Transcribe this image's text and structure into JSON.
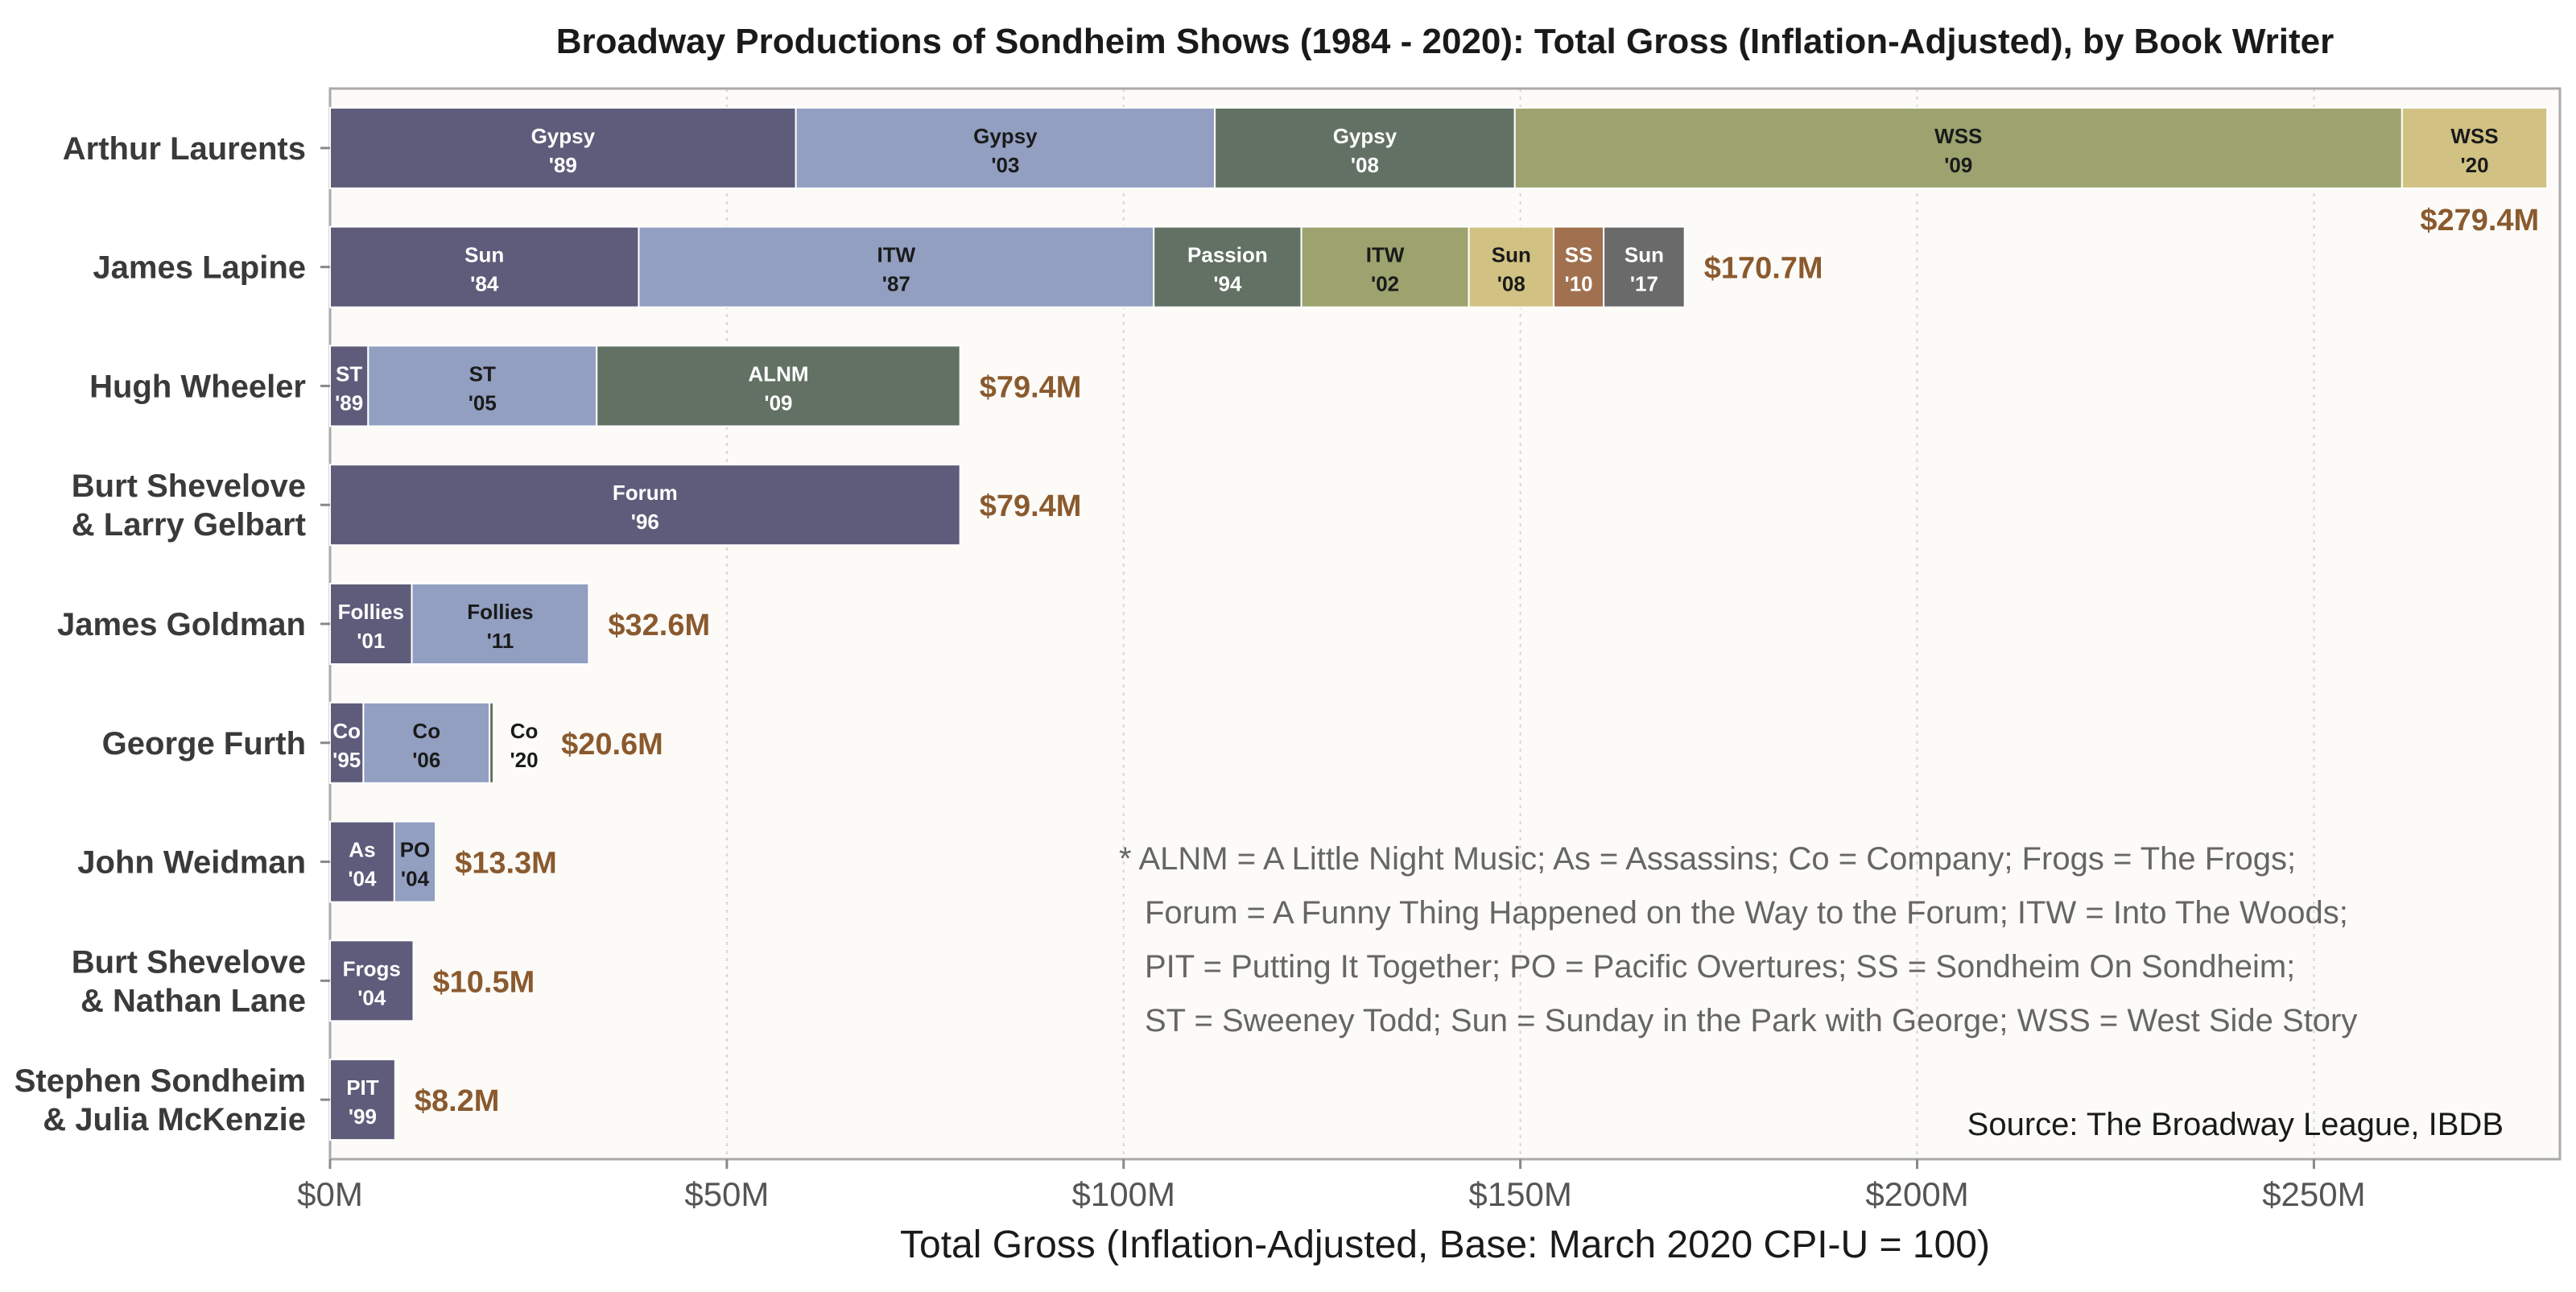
{
  "chart_data": {
    "type": "bar",
    "orientation": "horizontal",
    "stacked": true,
    "title": "Broadway Productions of Sondheim Shows (1984 - 2020): Total Gross (Inflation-Adjusted), by Book Writer",
    "xlabel": "Total Gross (Inflation-Adjusted, Base: March 2020 CPI-U = 100)",
    "xlim": [
      0,
      281
    ],
    "x_ticks": [
      {
        "value": 0,
        "label": "$0M"
      },
      {
        "value": 50,
        "label": "$50M"
      },
      {
        "value": 100,
        "label": "$100M"
      },
      {
        "value": 150,
        "label": "$150M"
      },
      {
        "value": 200,
        "label": "$200M"
      },
      {
        "value": 250,
        "label": "$250M"
      }
    ],
    "grid": "vertical dotted",
    "colors": {
      "background": "#fdfbf8",
      "frame": "#aaaaaa",
      "grid": "#d9d6d0",
      "total_label": "#8a5a2e",
      "palette": [
        "#5e5c7a",
        "#929fc1",
        "#627163",
        "#9ca36f",
        "#d1c283",
        "#a0704f",
        "#6a6a6a"
      ],
      "dark_text": "#ffffff",
      "light_text": "#1a1a1a"
    },
    "categories": [
      {
        "name_lines": [
          "Arthur Laurents"
        ],
        "total_label": "$279.4M",
        "total_position": "below-end",
        "segments": [
          {
            "show": "Gypsy",
            "year": "'89",
            "value": 58.7,
            "color_index": 0
          },
          {
            "show": "Gypsy",
            "year": "'03",
            "value": 52.8,
            "color_index": 1
          },
          {
            "show": "Gypsy",
            "year": "'08",
            "value": 37.8,
            "color_index": 2
          },
          {
            "show": "WSS",
            "year": "'09",
            "value": 111.8,
            "color_index": 3
          },
          {
            "show": "WSS",
            "year": "'20",
            "value": 18.3,
            "color_index": 4
          }
        ]
      },
      {
        "name_lines": [
          "James Lapine"
        ],
        "total_label": "$170.7M",
        "segments": [
          {
            "show": "Sun",
            "year": "'84",
            "value": 38.9,
            "color_index": 0
          },
          {
            "show": "ITW",
            "year": "'87",
            "value": 64.9,
            "color_index": 1
          },
          {
            "show": "Passion",
            "year": "'94",
            "value": 18.6,
            "color_index": 2
          },
          {
            "show": "ITW",
            "year": "'02",
            "value": 21.1,
            "color_index": 3
          },
          {
            "show": "Sun",
            "year": "'08",
            "value": 10.7,
            "color_index": 4
          },
          {
            "show": "SS",
            "year": "'10",
            "value": 6.3,
            "color_index": 5
          },
          {
            "show": "Sun",
            "year": "'17",
            "value": 10.2,
            "color_index": 6
          }
        ]
      },
      {
        "name_lines": [
          "Hugh Wheeler"
        ],
        "total_label": "$79.4M",
        "segments": [
          {
            "show": "ST",
            "year": "'89",
            "value": 4.8,
            "color_index": 0
          },
          {
            "show": "ST",
            "year": "'05",
            "value": 28.8,
            "color_index": 1
          },
          {
            "show": "ALNM",
            "year": "'09",
            "value": 45.8,
            "color_index": 2
          }
        ]
      },
      {
        "name_lines": [
          "Burt Shevelove",
          "& Larry Gelbart"
        ],
        "total_label": "$79.4M",
        "segments": [
          {
            "show": "Forum",
            "year": "'96",
            "value": 79.4,
            "color_index": 0
          }
        ]
      },
      {
        "name_lines": [
          "James Goldman"
        ],
        "total_label": "$32.6M",
        "segments": [
          {
            "show": "Follies",
            "year": "'01",
            "value": 10.3,
            "color_index": 0
          },
          {
            "show": "Follies",
            "year": "'11",
            "value": 22.3,
            "color_index": 1
          }
        ]
      },
      {
        "name_lines": [
          "George Furth"
        ],
        "total_label": "$20.6M",
        "segments": [
          {
            "show": "Co",
            "year": "'95",
            "value": 4.2,
            "color_index": 0
          },
          {
            "show": "Co",
            "year": "'06",
            "value": 15.9,
            "color_index": 1
          },
          {
            "show": "Co",
            "year": "'20",
            "value": 0.5,
            "color_index": 2,
            "label_outside": true
          }
        ]
      },
      {
        "name_lines": [
          "John Weidman"
        ],
        "total_label": "$13.3M",
        "segments": [
          {
            "show": "As",
            "year": "'04",
            "value": 8.1,
            "color_index": 0
          },
          {
            "show": "PO",
            "year": "'04",
            "value": 5.2,
            "color_index": 1
          }
        ]
      },
      {
        "name_lines": [
          "Burt Shevelove",
          "& Nathan Lane"
        ],
        "total_label": "$10.5M",
        "segments": [
          {
            "show": "Frogs",
            "year": "'04",
            "value": 10.5,
            "color_index": 0
          }
        ]
      },
      {
        "name_lines": [
          "Stephen Sondheim",
          "& Julia McKenzie"
        ],
        "total_label": "$8.2M",
        "segments": [
          {
            "show": "PIT",
            "year": "'99",
            "value": 8.2,
            "color_index": 0
          }
        ]
      }
    ]
  },
  "notes": [
    "* ALNM = A Little Night Music;  As = Assassins;  Co = Company;  Frogs = The Frogs;",
    "Forum = A Funny Thing Happened on the Way to the Forum; ITW = Into The Woods;",
    "PIT = Putting It Together;  PO = Pacific Overtures; SS = Sondheim On Sondheim;",
    "ST = Sweeney Todd; Sun = Sunday in the Park with George; WSS = West Side Story"
  ],
  "source": "Source: The Broadway League, IBDB"
}
